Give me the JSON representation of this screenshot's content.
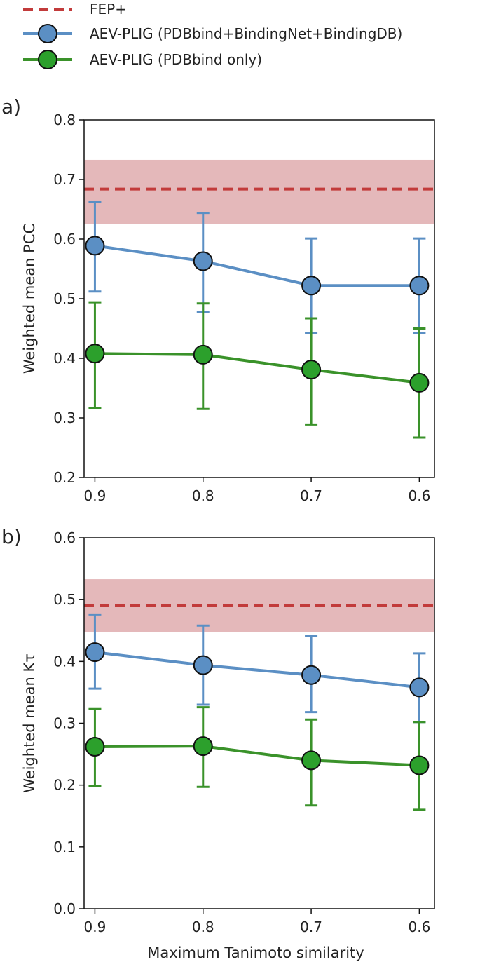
{
  "legend": {
    "entries": [
      {
        "key": "fep",
        "label": "FEP+"
      },
      {
        "key": "full",
        "label": "AEV-PLIG (PDBbind+BindingNet+BindingDB)"
      },
      {
        "key": "pdb",
        "label": "AEV-PLIG (PDBbind only)"
      }
    ],
    "placement": "top-left, above panels"
  },
  "colors": {
    "fep_line": "#c23b3b",
    "fep_band": "#d99a9c",
    "full_marker": "#5b8fc4",
    "full_line": "#5b8fc4",
    "pdb_marker": "#2ca02c",
    "pdb_line": "#3a922a",
    "marker_edge": "#111111"
  },
  "chart_data": [
    {
      "type": "line",
      "panel_label": "a)",
      "xlabel": "",
      "ylabel": "Weighted mean PCC",
      "x": [
        0.9,
        0.8,
        0.7,
        0.6
      ],
      "x_tick_labels": [
        "0.9",
        "0.8",
        "0.7",
        "0.6"
      ],
      "xlim": [
        0.91,
        0.586
      ],
      "x_reversed": true,
      "ylim": [
        0.2,
        0.8
      ],
      "y_ticks": [
        0.2,
        0.3,
        0.4,
        0.5,
        0.6,
        0.7,
        0.8
      ],
      "y_tick_labels": [
        "0.2",
        "0.3",
        "0.4",
        "0.5",
        "0.6",
        "0.7",
        "0.8"
      ],
      "grid": false,
      "reference": {
        "name": "FEP+",
        "value": 0.684,
        "band": [
          0.625,
          0.733
        ],
        "style": "dashed"
      },
      "series": [
        {
          "key": "full",
          "name": "AEV-PLIG (PDBbind+BindingNet+BindingDB)",
          "values": [
            0.589,
            0.563,
            0.522,
            0.522
          ],
          "err_low": [
            0.512,
            0.478,
            0.443,
            0.443
          ],
          "err_high": [
            0.663,
            0.644,
            0.601,
            0.601
          ]
        },
        {
          "key": "pdb",
          "name": "AEV-PLIG (PDBbind only)",
          "values": [
            0.408,
            0.406,
            0.381,
            0.359
          ],
          "err_low": [
            0.316,
            0.315,
            0.289,
            0.267
          ],
          "err_high": [
            0.494,
            0.492,
            0.467,
            0.45
          ]
        }
      ]
    },
    {
      "type": "line",
      "panel_label": "b)",
      "xlabel": "Maximum Tanimoto similarity",
      "ylabel": "Weighted mean Kτ",
      "x": [
        0.9,
        0.8,
        0.7,
        0.6
      ],
      "x_tick_labels": [
        "0.9",
        "0.8",
        "0.7",
        "0.6"
      ],
      "xlim": [
        0.91,
        0.586
      ],
      "x_reversed": true,
      "ylim": [
        0.0,
        0.6
      ],
      "y_ticks": [
        0.0,
        0.1,
        0.2,
        0.3,
        0.4,
        0.5,
        0.6
      ],
      "y_tick_labels": [
        "0.0",
        "0.1",
        "0.2",
        "0.3",
        "0.4",
        "0.5",
        "0.6"
      ],
      "grid": false,
      "reference": {
        "name": "FEP+",
        "value": 0.491,
        "band": [
          0.447,
          0.533
        ],
        "style": "dashed"
      },
      "series": [
        {
          "key": "full",
          "name": "AEV-PLIG (PDBbind+BindingNet+BindingDB)",
          "values": [
            0.415,
            0.394,
            0.378,
            0.358
          ],
          "err_low": [
            0.356,
            0.33,
            0.318,
            0.302
          ],
          "err_high": [
            0.476,
            0.458,
            0.441,
            0.413
          ]
        },
        {
          "key": "pdb",
          "name": "AEV-PLIG (PDBbind only)",
          "values": [
            0.262,
            0.263,
            0.24,
            0.232
          ],
          "err_low": [
            0.199,
            0.197,
            0.167,
            0.16
          ],
          "err_high": [
            0.323,
            0.326,
            0.306,
            0.302
          ]
        }
      ]
    }
  ]
}
